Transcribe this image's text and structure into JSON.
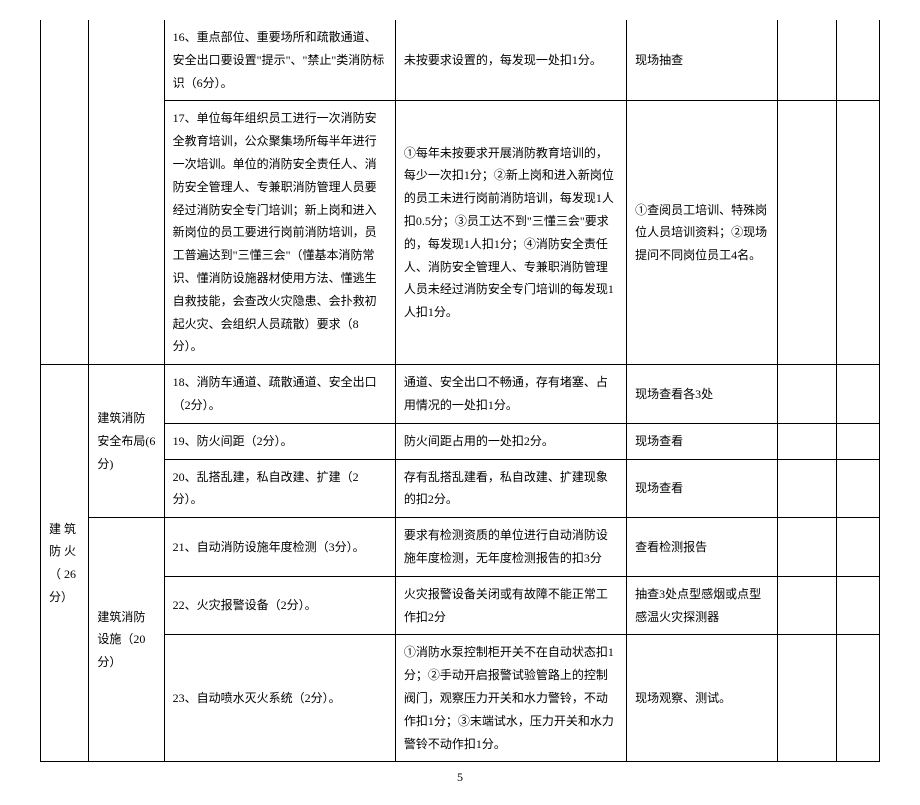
{
  "rows": {
    "r1": {
      "col3": "16、重点部位、重要场所和疏散通道、安全出口要设置\"提示\"、\"禁止\"类消防标识（6分）。",
      "col4": "未按要求设置的，每发现一处扣1分。",
      "col5": "现场抽查"
    },
    "r2": {
      "col3": "17、单位每年组织员工进行一次消防安全教育培训，公众聚集场所每半年进行一次培训。单位的消防安全责任人、消防安全管理人、专兼职消防管理人员要经过消防安全专门培训；新上岗和进入新岗位的员工要进行岗前消防培训，员工普遍达到\"三懂三会\"（懂基本消防常识、懂消防设施器材使用方法、懂逃生自救技能，会查改火灾隐患、会扑救初起火灾、会组织人员疏散）要求（8分）。",
      "col4": "①每年未按要求开展消防教育培训的，每少一次扣1分；②新上岗和进入新岗位的员工未进行岗前消防培训，每发现1人扣0.5分；③员工达不到\"三懂三会\"要求的，每发现1人扣1分；④消防安全责任人、消防安全管理人、专兼职消防管理人员未经过消防安全专门培训的每发现1人扣1分。",
      "col5": "①查阅员工培训、特殊岗位人员培训资料；②现场提问不同岗位员工4名。"
    },
    "r3": {
      "col1": "建 筑 防 火（ 26 分）",
      "col2a": "建筑消防安全布局(6分)",
      "col3": "18、消防车通道、疏散通道、安全出口（2分）。",
      "col4": "通道、安全出口不畅通，存有堵塞、占用情况的一处扣1分。",
      "col5": "现场查看各3处"
    },
    "r4": {
      "col3": "19、防火间距（2分）。",
      "col4": "防火间距占用的一处扣2分。",
      "col5": "现场查看"
    },
    "r5": {
      "col3": "20、乱搭乱建，私自改建、扩建（2分）。",
      "col4": "存有乱搭乱建看，私自改建、扩建现象的扣2分。",
      "col5": "现场查看"
    },
    "r6": {
      "col2b": "建筑消防设施（20分）",
      "col3": "21、自动消防设施年度检测（3分）。",
      "col4": "要求有检测资质的单位进行自动消防设施年度检测，无年度检测报告的扣3分",
      "col5": "查看检测报告"
    },
    "r7": {
      "col3": "22、火灾报警设备（2分）。",
      "col4": "火灾报警设备关闭或有故障不能正常工作扣2分",
      "col5": "抽查3处点型感烟或点型感温火灾探测器"
    },
    "r8": {
      "col3": "23、自动喷水灭火系统（2分）。",
      "col4": "①消防水泵控制柜开关不在自动状态扣1分；②手动开启报警试验管路上的控制阀门，观察压力开关和水力警铃，不动作扣1分；③末端试水，压力开关和水力警铃不动作扣1分。",
      "col5": "现场观察、测试。"
    }
  },
  "pageNumber": "5"
}
